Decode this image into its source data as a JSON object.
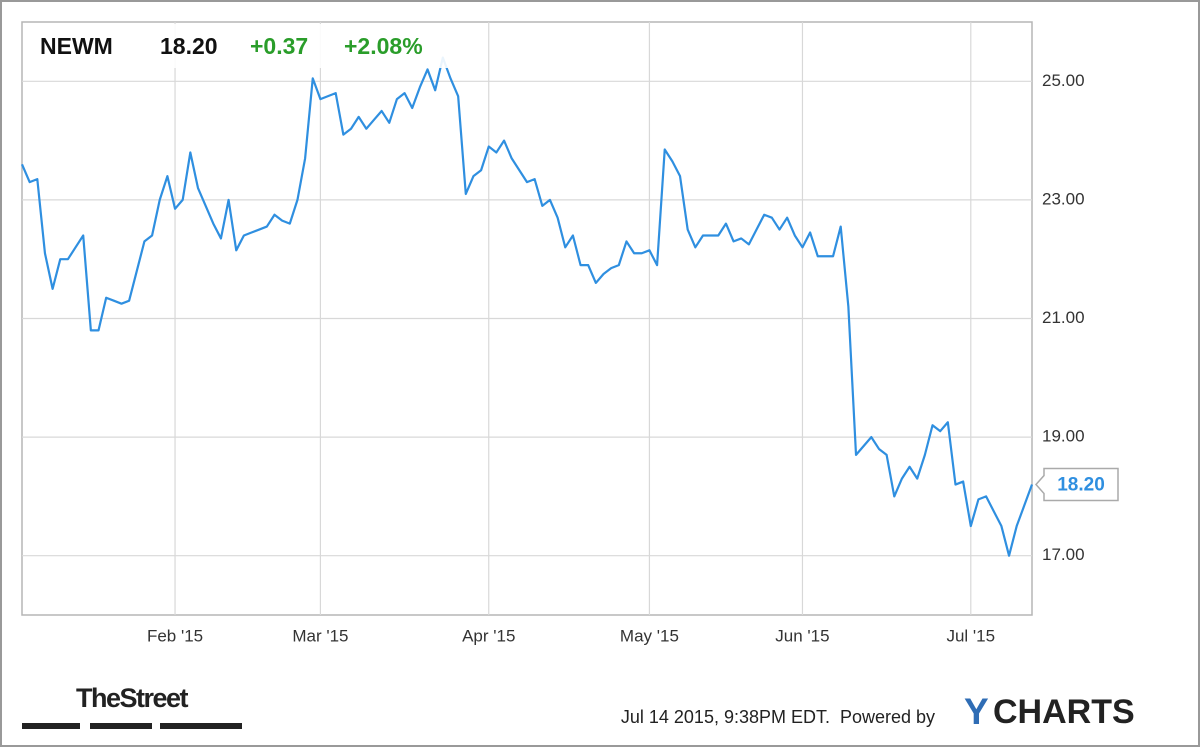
{
  "header": {
    "ticker": "NEWM",
    "price": "18.20",
    "change": "+0.37",
    "change_percent": "+2.08%"
  },
  "chart_data": {
    "type": "line",
    "color": "#2f8fe0",
    "categories": [
      null,
      null,
      null,
      null,
      null,
      null,
      null,
      null,
      null,
      null,
      null,
      null,
      null,
      null,
      null,
      null,
      null,
      null,
      null,
      null,
      "Feb '15",
      null,
      null,
      null,
      null,
      null,
      null,
      null,
      null,
      null,
      null,
      null,
      null,
      null,
      null,
      null,
      null,
      null,
      null,
      "Mar '15",
      null,
      null,
      null,
      null,
      null,
      null,
      null,
      null,
      null,
      null,
      null,
      null,
      null,
      null,
      null,
      null,
      null,
      null,
      null,
      null,
      null,
      "Apr '15",
      null,
      null,
      null,
      null,
      null,
      null,
      null,
      null,
      null,
      null,
      null,
      null,
      null,
      null,
      null,
      null,
      null,
      null,
      null,
      null,
      "May '15",
      null,
      null,
      null,
      null,
      null,
      null,
      null,
      null,
      null,
      null,
      null,
      null,
      null,
      null,
      null,
      null,
      null,
      null,
      null,
      "Jun '15",
      null,
      null,
      null,
      null,
      null,
      null,
      null,
      null,
      null,
      null,
      null,
      null,
      null,
      null,
      null,
      null,
      null,
      null,
      null,
      null,
      null,
      "Jul '15",
      null,
      null,
      null,
      null,
      null,
      null,
      null,
      null
    ],
    "values": [
      23.6,
      23.3,
      23.35,
      22.1,
      21.5,
      22.0,
      22.0,
      22.2,
      22.4,
      20.8,
      20.8,
      21.35,
      21.3,
      21.25,
      21.3,
      21.8,
      22.3,
      22.4,
      23.0,
      23.4,
      22.85,
      23.0,
      23.8,
      23.2,
      22.9,
      22.6,
      22.35,
      23.0,
      22.15,
      22.4,
      22.45,
      22.5,
      22.55,
      22.75,
      22.65,
      22.6,
      23.0,
      23.7,
      25.05,
      24.7,
      24.75,
      24.8,
      24.1,
      24.2,
      24.4,
      24.2,
      24.35,
      24.5,
      24.3,
      24.7,
      24.8,
      24.55,
      24.9,
      25.2,
      24.85,
      25.4,
      25.05,
      24.75,
      23.1,
      23.4,
      23.5,
      23.9,
      23.8,
      24.0,
      23.7,
      23.5,
      23.3,
      23.35,
      22.9,
      23.0,
      22.7,
      22.2,
      22.4,
      21.9,
      21.9,
      21.6,
      21.75,
      21.85,
      21.9,
      22.3,
      22.1,
      22.1,
      22.15,
      21.9,
      23.85,
      23.65,
      23.4,
      22.5,
      22.2,
      22.4,
      22.4,
      22.4,
      22.6,
      22.3,
      22.35,
      22.25,
      22.5,
      22.75,
      22.7,
      22.5,
      22.7,
      22.4,
      22.2,
      22.45,
      22.05,
      22.05,
      22.05,
      22.55,
      21.2,
      18.7,
      18.85,
      19.0,
      18.8,
      18.7,
      18.0,
      18.3,
      18.5,
      18.3,
      18.7,
      19.2,
      19.1,
      19.25,
      18.2,
      18.25,
      17.5,
      17.95,
      18.0,
      17.75,
      17.5,
      17.0,
      17.5,
      17.85,
      18.2
    ],
    "ylim": [
      16,
      26
    ],
    "yticks": [
      {
        "value": 17,
        "label": "17.00"
      },
      {
        "value": 19,
        "label": "19.00"
      },
      {
        "value": 21,
        "label": "21.00"
      },
      {
        "value": 23,
        "label": "23.00"
      },
      {
        "value": 25,
        "label": "25.00"
      }
    ],
    "grid": true
  },
  "footer": {
    "brand": "TheStreet",
    "timestamp": "Jul 14 2015, 9:38PM EDT.",
    "powered": "Powered by",
    "provider_y": "Y",
    "provider_rest": "CHARTS"
  }
}
